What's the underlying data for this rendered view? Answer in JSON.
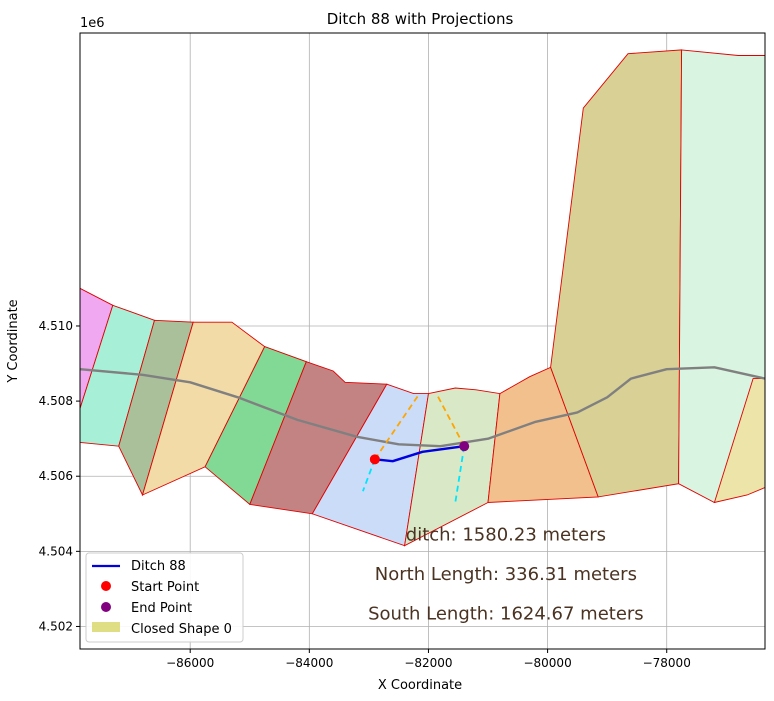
{
  "chart_data": {
    "type": "map",
    "title": "Ditch 88 with Projections",
    "xlabel": "X Coordinate",
    "ylabel": "Y Coordinate",
    "y_offset_label": "1e6",
    "xlim": [
      -87850,
      -76350
    ],
    "ylim": [
      4501400,
      4517800
    ],
    "x_ticks": [
      -86000,
      -84000,
      -82000,
      -80000,
      -78000
    ],
    "x_tick_labels": [
      "−86000",
      "−84000",
      "−82000",
      "−80000",
      "−78000"
    ],
    "y_ticks": [
      4502000,
      4504000,
      4506000,
      4508000,
      4510000
    ],
    "y_tick_labels": [
      "4.502",
      "4.504",
      "4.506",
      "4.508",
      "4.510"
    ],
    "grid": true,
    "legend_position": "lower-left",
    "legend": [
      {
        "label": "Ditch 88",
        "kind": "line",
        "color": "#0000e0"
      },
      {
        "label": "Start Point",
        "kind": "point",
        "color": "#ff0000"
      },
      {
        "label": "End Point",
        "kind": "point",
        "color": "#800080"
      },
      {
        "label": "Closed Shape 0",
        "kind": "patch",
        "color": "#d9d86f"
      }
    ],
    "annotations": [
      {
        "text": "ditch: 1580.23 meters",
        "x": -80700,
        "y": 4504450
      },
      {
        "text": "North Length: 336.31 meters",
        "x": -80700,
        "y": 4503400
      },
      {
        "text": "South Length: 1624.67 meters",
        "x": -80700,
        "y": 4502350
      }
    ],
    "polygons": [
      {
        "color": "#f0a8f0",
        "points": [
          [
            -87850,
            4511000
          ],
          [
            -87300,
            4510550
          ],
          [
            -87850,
            4507800
          ]
        ]
      },
      {
        "color": "#f0a8f0",
        "points": [
          [
            -87850,
            4507800
          ],
          [
            -87850,
            4511000
          ],
          [
            -87300,
            4510550
          ],
          [
            -87850,
            4507800
          ]
        ]
      },
      {
        "color": "#a7f0d7",
        "points": [
          [
            -87850,
            4507800
          ],
          [
            -87300,
            4510550
          ],
          [
            -86600,
            4510150
          ],
          [
            -87200,
            4506800
          ],
          [
            -87850,
            4506900
          ]
        ]
      },
      {
        "color": "#a9c09a",
        "points": [
          [
            -86600,
            4510150
          ],
          [
            -85950,
            4510100
          ],
          [
            -86800,
            4505500
          ],
          [
            -87200,
            4506800
          ]
        ]
      },
      {
        "color": "#f2dba6",
        "points": [
          [
            -85950,
            4510100
          ],
          [
            -85300,
            4510100
          ],
          [
            -84750,
            4509450
          ],
          [
            -85750,
            4506250
          ],
          [
            -86800,
            4505500
          ]
        ]
      },
      {
        "color": "#82d996",
        "points": [
          [
            -84750,
            4509450
          ],
          [
            -84050,
            4509050
          ],
          [
            -85000,
            4505250
          ],
          [
            -85750,
            4506250
          ]
        ]
      },
      {
        "color": "#c48383",
        "points": [
          [
            -84050,
            4509050
          ],
          [
            -83600,
            4508800
          ],
          [
            -83400,
            4508500
          ],
          [
            -82700,
            4508450
          ],
          [
            -83950,
            4505000
          ],
          [
            -85000,
            4505250
          ]
        ]
      },
      {
        "color": "#cbdcf8",
        "points": [
          [
            -82700,
            4508450
          ],
          [
            -82250,
            4508200
          ],
          [
            -82000,
            4508200
          ],
          [
            -82400,
            4504150
          ],
          [
            -83950,
            4505000
          ]
        ]
      },
      {
        "color": "#d9e8c6",
        "points": [
          [
            -82000,
            4508200
          ],
          [
            -81550,
            4508350
          ],
          [
            -81200,
            4508300
          ],
          [
            -80800,
            4508200
          ],
          [
            -81000,
            4505300
          ],
          [
            -82400,
            4504150
          ]
        ]
      },
      {
        "color": "#f2c08d",
        "points": [
          [
            -80800,
            4508200
          ],
          [
            -80300,
            4508650
          ],
          [
            -79950,
            4508900
          ],
          [
            -79150,
            4505450
          ],
          [
            -81000,
            4505300
          ]
        ]
      },
      {
        "color": "#d9d095",
        "points": [
          [
            -79950,
            4508900
          ],
          [
            -79400,
            4515800
          ],
          [
            -78650,
            4517250
          ],
          [
            -77750,
            4517350
          ],
          [
            -77800,
            4505800
          ],
          [
            -79150,
            4505450
          ]
        ]
      },
      {
        "color": "#d9f4e0",
        "points": [
          [
            -77750,
            4517350
          ],
          [
            -76800,
            4517200
          ],
          [
            -76350,
            4517200
          ],
          [
            -76350,
            4505800
          ],
          [
            -77200,
            4505300
          ],
          [
            -77800,
            4505800
          ]
        ]
      },
      {
        "color": "#ece4a8",
        "points": [
          [
            -76550,
            4508600
          ],
          [
            -76350,
            4508600
          ],
          [
            -76350,
            4505700
          ],
          [
            -76650,
            4505500
          ],
          [
            -77200,
            4505300
          ]
        ]
      }
    ],
    "mainline": [
      [
        -87850,
        4508850
      ],
      [
        -86800,
        4508700
      ],
      [
        -86000,
        4508500
      ],
      [
        -85200,
        4508100
      ],
      [
        -84200,
        4507500
      ],
      [
        -83200,
        4507050
      ],
      [
        -82500,
        4506850
      ],
      [
        -81800,
        4506800
      ],
      [
        -81000,
        4507000
      ],
      [
        -80200,
        4507450
      ],
      [
        -79500,
        4507700
      ],
      [
        -79000,
        4508100
      ],
      [
        -78600,
        4508600
      ],
      [
        -78000,
        4508850
      ],
      [
        -77200,
        4508900
      ],
      [
        -76350,
        4508600
      ]
    ],
    "ditch": [
      [
        -82900,
        4506450
      ],
      [
        -82600,
        4506400
      ],
      [
        -82100,
        4506650
      ],
      [
        -81400,
        4506800
      ]
    ],
    "start_point": [
      -82900,
      4506450
    ],
    "end_point": [
      -81400,
      4506800
    ],
    "north_projections": [
      [
        [
          -82900,
          4506450
        ],
        [
          -82150,
          4508200
        ]
      ],
      [
        [
          -81400,
          4506800
        ],
        [
          -81850,
          4508150
        ]
      ]
    ],
    "south_projections": [
      [
        [
          -82900,
          4506450
        ],
        [
          -83100,
          4505600
        ]
      ],
      [
        [
          -81400,
          4506800
        ],
        [
          -81550,
          4505300
        ]
      ]
    ]
  }
}
